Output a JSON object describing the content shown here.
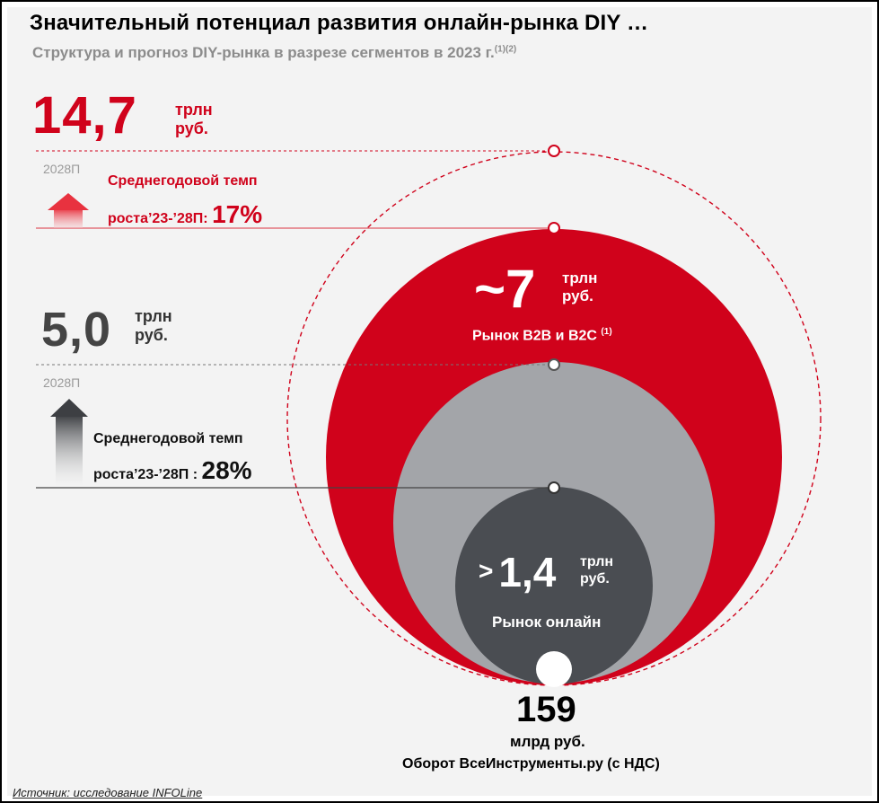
{
  "header": {
    "title": "Значительный потенциал развития онлайн-рынка DIY …",
    "subtitle": "Структура и прогноз DIY-рынка в разрезе сегментов в 2023 г.",
    "subtitle_notes": "(1)(2)"
  },
  "forecast_total": {
    "value": "14,7",
    "unit_line1": "трлн",
    "unit_line2": "руб.",
    "year": "2028П",
    "rate_line1": "Среднегодовой темп",
    "rate_prefix": "роста’23-’28П: ",
    "rate_value": "17%"
  },
  "forecast_online": {
    "value": "5,0",
    "unit_line1": "трлн",
    "unit_line2": "руб.",
    "year": "2028П",
    "rate_line1": "Среднегодовой темп",
    "rate_prefix": "роста’23-’28П : ",
    "rate_value": "28%"
  },
  "circles": {
    "b2b": {
      "value": "~7",
      "unit_line1": "трлн",
      "unit_line2": "руб.",
      "label": "Рынок B2B и B2C",
      "note": "(1)"
    },
    "online": {
      "prefix": ">",
      "value": "1,4",
      "unit_line1": "трлн",
      "unit_line2": "руб.",
      "label": "Рынок онлайн"
    },
    "vseinstrumenty": {
      "value": "159",
      "unit": "млрд руб.",
      "label": "Оборот ВсеИнструменты.ру (с НДС)"
    }
  },
  "footer": {
    "source": "Источник: исследование INFOLine"
  },
  "colors": {
    "red": "#d0021b",
    "grey": "#a3a5a9",
    "dark": "#4a4d52",
    "panel": "#f3f3f3"
  },
  "chart_data": {
    "type": "nested-circles",
    "title": "Структура и прогноз DIY-рынка в разрезе сегментов в 2023 г.",
    "segments": [
      {
        "name": "Рынок B2B и B2C",
        "year": "2023",
        "value": 7,
        "unit": "трлн руб.",
        "approx": true
      },
      {
        "name": "Рынок онлайн",
        "year": "2023",
        "value": 1.4,
        "unit": "трлн руб.",
        "lower_bound": true
      },
      {
        "name": "Оборот ВсеИнструменты.ру (с НДС)",
        "year": "2023",
        "value": 159,
        "unit": "млрд руб."
      }
    ],
    "forecasts": [
      {
        "series": "Рынок B2B и B2C",
        "year": "2028П",
        "value": 14.7,
        "unit": "трлн руб.",
        "cagr_23_28": 17
      },
      {
        "series": "Рынок онлайн",
        "year": "2028П",
        "value": 5.0,
        "unit": "трлн руб.",
        "cagr_23_28": 28
      }
    ]
  }
}
